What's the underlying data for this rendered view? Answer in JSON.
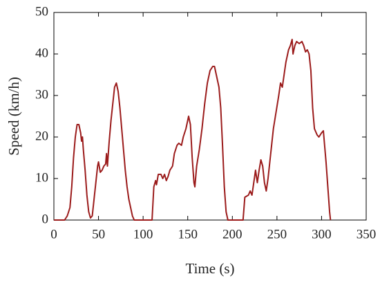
{
  "chart_data": {
    "type": "line",
    "x_label": "Time (s)",
    "y_label": "Speed (km/h)",
    "x": [
      0,
      12,
      15,
      18,
      20,
      22,
      24,
      26,
      28,
      30,
      31,
      32,
      33,
      35,
      37,
      39,
      41,
      43,
      45,
      47,
      49,
      50,
      52,
      54,
      56,
      58,
      59,
      60,
      62,
      64,
      66,
      68,
      70,
      72,
      74,
      76,
      78,
      80,
      82,
      84,
      86,
      88,
      90,
      110,
      112,
      114,
      115,
      117,
      120,
      122,
      124,
      126,
      128,
      130,
      133,
      135,
      138,
      140,
      143,
      145,
      148,
      151,
      153,
      155,
      157,
      158,
      160,
      163,
      166,
      169,
      172,
      175,
      178,
      180,
      182,
      185,
      187,
      189,
      191,
      193,
      195,
      212,
      214,
      218,
      220,
      222,
      224,
      226,
      228,
      230,
      232,
      234,
      236,
      238,
      240,
      243,
      246,
      249,
      252,
      254,
      256,
      258,
      260,
      263,
      265,
      267,
      268,
      270,
      272,
      275,
      278,
      280,
      282,
      284,
      286,
      288,
      290,
      292,
      295,
      297,
      300,
      302,
      303,
      305,
      307,
      309,
      310
    ],
    "values": [
      0,
      0,
      1,
      3,
      8,
      15,
      20,
      23,
      23,
      21,
      19,
      20,
      17,
      12,
      6,
      2,
      0.5,
      1,
      5,
      9,
      13,
      14,
      11.5,
      12,
      13,
      13.5,
      16,
      13,
      19,
      24,
      28,
      32,
      33,
      31,
      27,
      22,
      17,
      12,
      8,
      5,
      3,
      1,
      0,
      0,
      8,
      9.5,
      8.5,
      11,
      11,
      10,
      11,
      9.5,
      10.5,
      12,
      13,
      16,
      18,
      18.5,
      18,
      20,
      22,
      25,
      23,
      15,
      9,
      8,
      13,
      17,
      22,
      28,
      33,
      36,
      37,
      37,
      35,
      32,
      27,
      18,
      8,
      2,
      0,
      0,
      5.5,
      6,
      7,
      6,
      9,
      12,
      9,
      12,
      14.5,
      13,
      9,
      7,
      10,
      16,
      22,
      26,
      30,
      33,
      32,
      35,
      38,
      41,
      42,
      43.5,
      40,
      42,
      43,
      42.5,
      43,
      42,
      40.5,
      41,
      40,
      36,
      27,
      22,
      20.5,
      20,
      21,
      21.5,
      19,
      14,
      8,
      2,
      0
    ],
    "color": "#9b1b1b",
    "xlim": [
      0,
      350
    ],
    "xticks": [
      0,
      50,
      100,
      150,
      200,
      250,
      300,
      350
    ],
    "ylim": [
      0,
      50
    ],
    "yticks": [
      0,
      10,
      20,
      30,
      40,
      50
    ]
  }
}
